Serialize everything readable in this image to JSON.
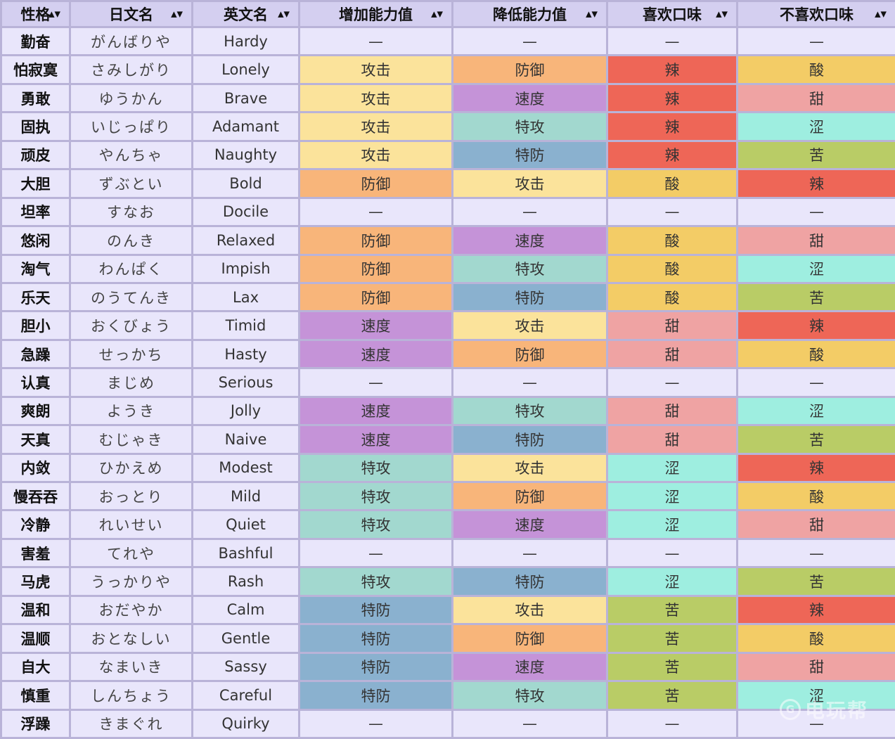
{
  "header": {
    "columns": [
      "性格",
      "日文名",
      "英文名",
      "增加能力值",
      "降低能力值",
      "喜欢口味",
      "不喜欢口味"
    ]
  },
  "rows": [
    {
      "cn": "勤奋",
      "jp": "がんばりや",
      "en": "Hardy",
      "up": "—",
      "down": "—",
      "like": "—",
      "dislike": "—"
    },
    {
      "cn": "怕寂寞",
      "jp": "さみしがり",
      "en": "Lonely",
      "up": "攻击",
      "down": "防御",
      "like": "辣",
      "dislike": "酸"
    },
    {
      "cn": "勇敢",
      "jp": "ゆうかん",
      "en": "Brave",
      "up": "攻击",
      "down": "速度",
      "like": "辣",
      "dislike": "甜"
    },
    {
      "cn": "固执",
      "jp": "いじっぱり",
      "en": "Adamant",
      "up": "攻击",
      "down": "特攻",
      "like": "辣",
      "dislike": "涩"
    },
    {
      "cn": "顽皮",
      "jp": "やんちゃ",
      "en": "Naughty",
      "up": "攻击",
      "down": "特防",
      "like": "辣",
      "dislike": "苦"
    },
    {
      "cn": "大胆",
      "jp": "ずぶとい",
      "en": "Bold",
      "up": "防御",
      "down": "攻击",
      "like": "酸",
      "dislike": "辣"
    },
    {
      "cn": "坦率",
      "jp": "すなお",
      "en": "Docile",
      "up": "—",
      "down": "—",
      "like": "—",
      "dislike": "—"
    },
    {
      "cn": "悠闲",
      "jp": "のんき",
      "en": "Relaxed",
      "up": "防御",
      "down": "速度",
      "like": "酸",
      "dislike": "甜"
    },
    {
      "cn": "淘气",
      "jp": "わんぱく",
      "en": "Impish",
      "up": "防御",
      "down": "特攻",
      "like": "酸",
      "dislike": "涩"
    },
    {
      "cn": "乐天",
      "jp": "のうてんき",
      "en": "Lax",
      "up": "防御",
      "down": "特防",
      "like": "酸",
      "dislike": "苦"
    },
    {
      "cn": "胆小",
      "jp": "おくびょう",
      "en": "Timid",
      "up": "速度",
      "down": "攻击",
      "like": "甜",
      "dislike": "辣"
    },
    {
      "cn": "急躁",
      "jp": "せっかち",
      "en": "Hasty",
      "up": "速度",
      "down": "防御",
      "like": "甜",
      "dislike": "酸"
    },
    {
      "cn": "认真",
      "jp": "まじめ",
      "en": "Serious",
      "up": "—",
      "down": "—",
      "like": "—",
      "dislike": "—"
    },
    {
      "cn": "爽朗",
      "jp": "ようき",
      "en": "Jolly",
      "up": "速度",
      "down": "特攻",
      "like": "甜",
      "dislike": "涩"
    },
    {
      "cn": "天真",
      "jp": "むじゃき",
      "en": "Naive",
      "up": "速度",
      "down": "特防",
      "like": "甜",
      "dislike": "苦"
    },
    {
      "cn": "内敛",
      "jp": "ひかえめ",
      "en": "Modest",
      "up": "特攻",
      "down": "攻击",
      "like": "涩",
      "dislike": "辣"
    },
    {
      "cn": "慢吞吞",
      "jp": "おっとり",
      "en": "Mild",
      "up": "特攻",
      "down": "防御",
      "like": "涩",
      "dislike": "酸"
    },
    {
      "cn": "冷静",
      "jp": "れいせい",
      "en": "Quiet",
      "up": "特攻",
      "down": "速度",
      "like": "涩",
      "dislike": "甜"
    },
    {
      "cn": "害羞",
      "jp": "てれや",
      "en": "Bashful",
      "up": "—",
      "down": "—",
      "like": "—",
      "dislike": "—"
    },
    {
      "cn": "马虎",
      "jp": "うっかりや",
      "en": "Rash",
      "up": "特攻",
      "down": "特防",
      "like": "涩",
      "dislike": "苦"
    },
    {
      "cn": "温和",
      "jp": "おだやか",
      "en": "Calm",
      "up": "特防",
      "down": "攻击",
      "like": "苦",
      "dislike": "辣"
    },
    {
      "cn": "温顺",
      "jp": "おとなしい",
      "en": "Gentle",
      "up": "特防",
      "down": "防御",
      "like": "苦",
      "dislike": "酸"
    },
    {
      "cn": "自大",
      "jp": "なまいき",
      "en": "Sassy",
      "up": "特防",
      "down": "速度",
      "like": "苦",
      "dislike": "甜"
    },
    {
      "cn": "慎重",
      "jp": "しんちょう",
      "en": "Careful",
      "up": "特防",
      "down": "特攻",
      "like": "苦",
      "dislike": "涩"
    },
    {
      "cn": "浮躁",
      "jp": "きまぐれ",
      "en": "Quirky",
      "up": "—",
      "down": "—",
      "like": "—",
      "dislike": "—"
    }
  ],
  "colors": {
    "攻击": "#fbe39b",
    "防御": "#f8b57a",
    "速度": "#c593d8",
    "特攻": "#a2d8cf",
    "特防": "#8ab1cf",
    "辣": "#ee6657",
    "酸": "#f3cc66",
    "甜": "#efa3a3",
    "涩": "#9eeee0",
    "苦": "#b9cc66",
    "—": "#e9e6fb"
  },
  "watermark": {
    "badge": "G",
    "text": "电玩帮"
  },
  "icons": {
    "sort": "sort-updown-icon"
  }
}
